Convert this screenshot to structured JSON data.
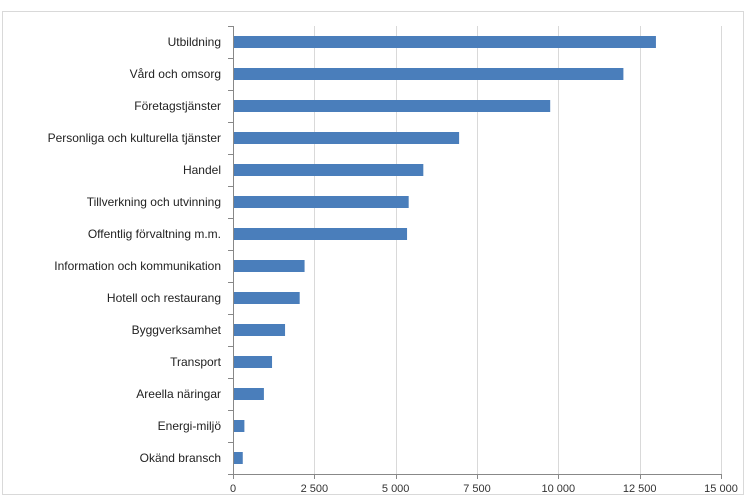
{
  "chart_data": {
    "type": "bar",
    "orientation": "horizontal",
    "title": "",
    "xlabel": "",
    "ylabel": "",
    "categories": [
      "Utbildning",
      "Vård och omsorg",
      "Företagstjänster",
      "Personliga och kulturella tjänster",
      "Handel",
      "Tillverkning och utvinning",
      "Offentlig förvaltning m.m.",
      "Information och kommunikation",
      "Hotell och restaurang",
      "Byggverksamhet",
      "Transport",
      "Areella näringar",
      "Energi-miljö",
      "Okänd bransch"
    ],
    "values": [
      13000,
      12000,
      9750,
      6950,
      5850,
      5400,
      5350,
      2200,
      2050,
      1600,
      1200,
      950,
      350,
      300
    ],
    "xlim": [
      0,
      15000
    ],
    "ticks": [
      0,
      2500,
      5000,
      7500,
      10000,
      12500,
      15000
    ],
    "tick_labels": [
      "0",
      "2 500",
      "5 000",
      "7 500",
      "10 000",
      "12 500",
      "15 000"
    ],
    "grid": "vertical",
    "bar_color": "#4a7ebb",
    "legend": "none"
  }
}
